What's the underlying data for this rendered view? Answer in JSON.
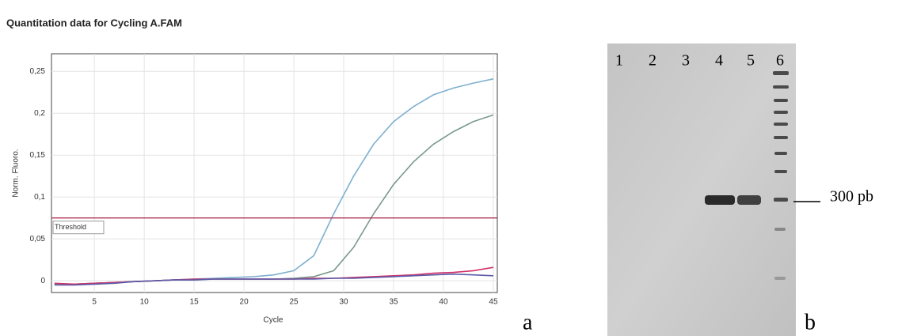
{
  "chart_data": {
    "type": "line",
    "title": "Quantitation data for Cycling A.FAM",
    "x_label": "Cycle",
    "y_label": "Norm. Fluoro.",
    "x": [
      1,
      3,
      5,
      7,
      9,
      11,
      13,
      15,
      17,
      19,
      21,
      23,
      25,
      27,
      29,
      31,
      33,
      35,
      37,
      39,
      41,
      43,
      45
    ],
    "series": [
      {
        "color": "#7fb0cf",
        "values": [
          -0.004,
          -0.004,
          -0.003,
          -0.002,
          -0.001,
          0,
          0.001,
          0.002,
          0.003,
          0.004,
          0.005,
          0.007,
          0.012,
          0.03,
          0.08,
          0.125,
          0.163,
          0.19,
          0.208,
          0.222,
          0.23,
          0.236,
          0.241
        ]
      },
      {
        "color": "#7a9a8c",
        "values": [
          -0.004,
          -0.004,
          -0.003,
          -0.002,
          -0.001,
          0,
          0.001,
          0.001,
          0.002,
          0.002,
          0.002,
          0.002,
          0.003,
          0.005,
          0.012,
          0.04,
          0.08,
          0.115,
          0.142,
          0.163,
          0.178,
          0.19,
          0.198
        ]
      },
      {
        "color": "#d0306a",
        "values": [
          -0.003,
          -0.004,
          -0.003,
          -0.002,
          -0.001,
          0,
          0.001,
          0.002,
          0.002,
          0.002,
          0.002,
          0.002,
          0.002,
          0.003,
          0.003,
          0.004,
          0.005,
          0.006,
          0.007,
          0.009,
          0.01,
          0.012,
          0.016
        ]
      },
      {
        "color": "#5a5aa8",
        "values": [
          -0.005,
          -0.005,
          -0.004,
          -0.003,
          -0.001,
          0,
          0.001,
          0.001,
          0.002,
          0.002,
          0.002,
          0.002,
          0.002,
          0.002,
          0.003,
          0.003,
          0.004,
          0.005,
          0.006,
          0.007,
          0.008,
          0.007,
          0.006
        ]
      }
    ],
    "threshold": 0.075,
    "threshold_label": "Threshold",
    "threshold_color": "#b03050",
    "xlim": [
      0.7,
      45.4
    ],
    "ylim": [
      -0.014,
      0.271
    ],
    "xticks": [
      5,
      10,
      15,
      20,
      25,
      30,
      35,
      40,
      45
    ],
    "yticks": [
      0,
      {
        "value": 0.05,
        "label": "0,05"
      },
      {
        "value": 0.1,
        "label": "0,1"
      },
      {
        "value": 0.15,
        "label": "0,15"
      },
      {
        "value": 0.2,
        "label": "0,2"
      },
      {
        "value": 0.25,
        "label": "0,25"
      }
    ],
    "grid": true
  },
  "gel": {
    "lane_labels": [
      "1",
      "2",
      "3",
      "4",
      "5",
      "6"
    ],
    "marker_label": "300 pb"
  },
  "panel_labels": [
    "a",
    "b"
  ]
}
